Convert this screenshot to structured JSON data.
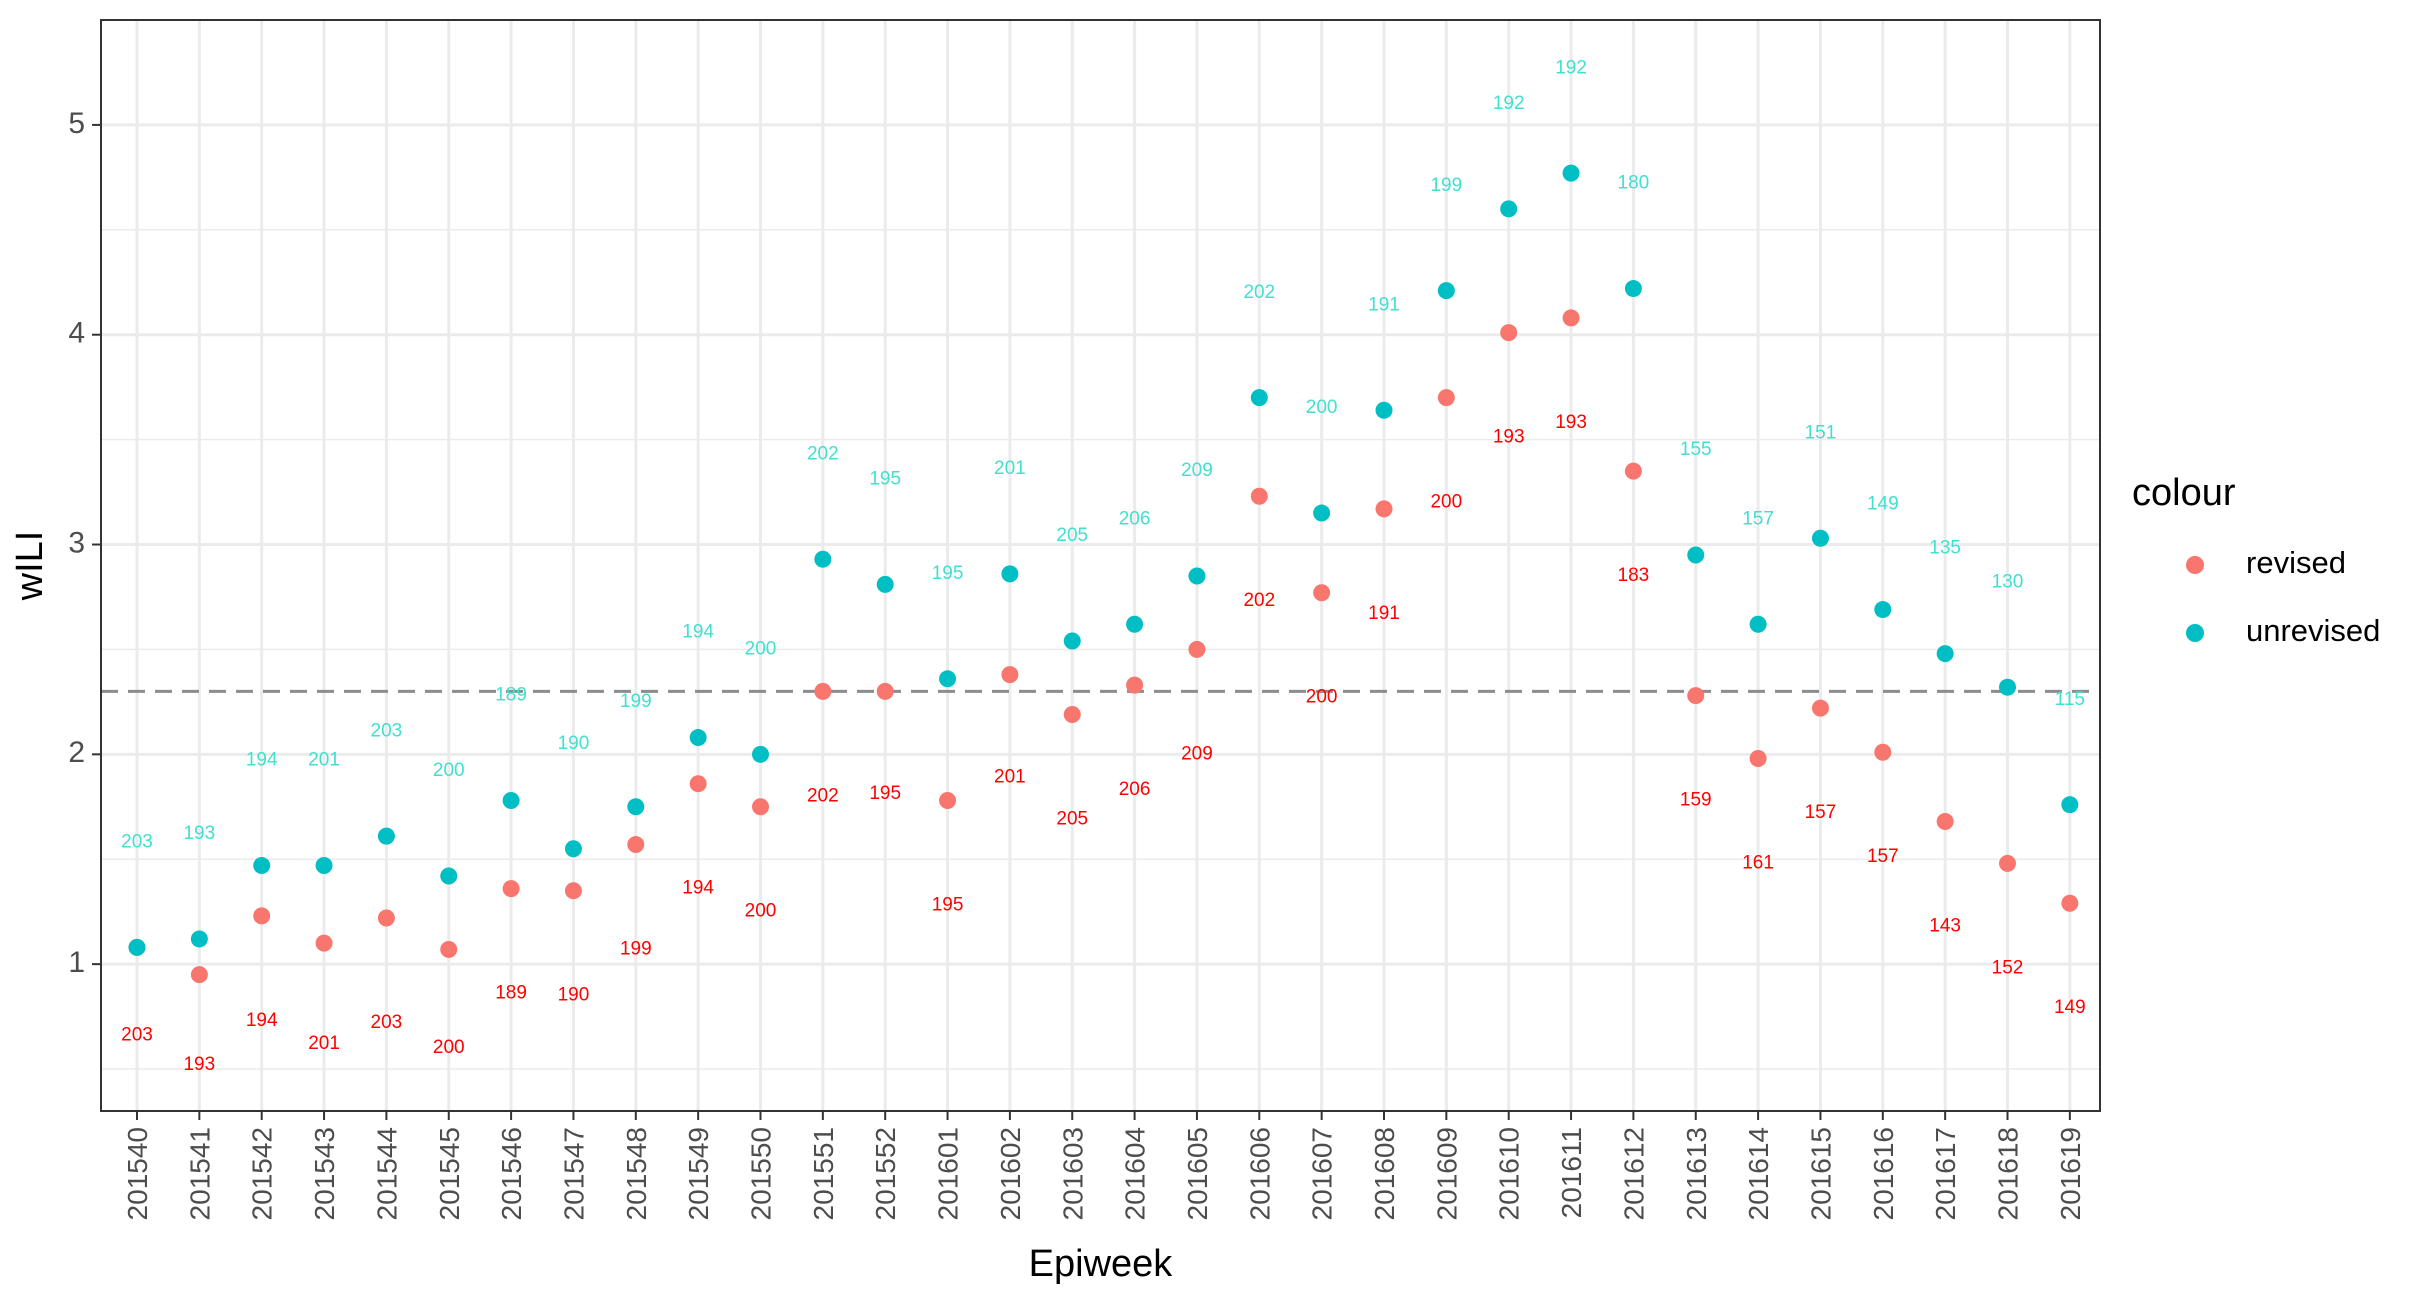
{
  "chart_data": {
    "type": "scatter",
    "xlabel": "Epiweek",
    "ylabel": "wILI",
    "title": "",
    "categories": [
      "201540",
      "201541",
      "201542",
      "201543",
      "201544",
      "201545",
      "201546",
      "201547",
      "201548",
      "201549",
      "201550",
      "201551",
      "201552",
      "201601",
      "201602",
      "201603",
      "201604",
      "201605",
      "201606",
      "201607",
      "201608",
      "201609",
      "201610",
      "201611",
      "201612",
      "201613",
      "201614",
      "201615",
      "201616",
      "201617",
      "201618",
      "201619"
    ],
    "ylim": [
      0.3,
      5.5
    ],
    "yticks": [
      1,
      2,
      3,
      4,
      5
    ],
    "grid": true,
    "reference_line": {
      "y": 2.3,
      "style": "dashed",
      "color": "#999999"
    },
    "legend": {
      "title": "colour",
      "position": "right"
    },
    "series": [
      {
        "name": "revised",
        "color": "#F8766D",
        "label_color": "#FF0000",
        "values": [
          1.08,
          0.95,
          1.23,
          1.1,
          1.22,
          1.07,
          1.36,
          1.35,
          1.57,
          1.86,
          1.75,
          2.3,
          2.3,
          1.78,
          2.38,
          2.19,
          2.33,
          2.5,
          3.23,
          2.77,
          3.17,
          3.7,
          4.01,
          4.08,
          3.35,
          2.28,
          1.98,
          2.22,
          2.01,
          1.68,
          1.48,
          1.29
        ],
        "labels": [
          "203",
          "193",
          "194",
          "201",
          "203",
          "200",
          "189",
          "190",
          "199",
          "194",
          "200",
          "202",
          "195",
          "195",
          "201",
          "205",
          "206",
          "209",
          "202",
          "200",
          "191",
          "200",
          "193",
          "193",
          "183",
          "159",
          "161",
          "157",
          "157",
          "143",
          "152",
          "149"
        ],
        "label_y": [
          0.66,
          0.52,
          0.73,
          0.62,
          0.72,
          0.6,
          0.86,
          0.85,
          1.07,
          1.36,
          1.25,
          1.8,
          1.81,
          1.28,
          1.89,
          1.69,
          1.83,
          2.0,
          2.73,
          2.27,
          2.67,
          3.2,
          3.51,
          3.58,
          2.85,
          1.78,
          1.48,
          1.72,
          1.51,
          1.18,
          0.98,
          0.79
        ]
      },
      {
        "name": "unrevised",
        "color": "#00BFC4",
        "label_color": "#40E0D0",
        "values": [
          1.08,
          1.12,
          1.47,
          1.47,
          1.61,
          1.42,
          1.78,
          1.55,
          1.75,
          2.08,
          2.0,
          2.93,
          2.81,
          2.36,
          2.86,
          2.54,
          2.62,
          2.85,
          3.7,
          3.15,
          3.64,
          4.21,
          4.6,
          4.77,
          4.22,
          2.95,
          2.62,
          3.03,
          2.69,
          2.48,
          2.32,
          1.76
        ],
        "labels": [
          "203",
          "193",
          "194",
          "201",
          "203",
          "200",
          "189",
          "190",
          "199",
          "194",
          "200",
          "202",
          "195",
          "195",
          "201",
          "205",
          "206",
          "209",
          "202",
          "200",
          "191",
          "199",
          "192",
          "192",
          "180",
          "155",
          "157",
          "151",
          "149",
          "135",
          "130",
          "115"
        ],
        "label_y": [
          1.58,
          1.62,
          1.97,
          1.97,
          2.11,
          1.92,
          2.28,
          2.05,
          2.25,
          2.58,
          2.5,
          3.43,
          3.31,
          2.86,
          3.36,
          3.04,
          3.12,
          3.35,
          4.2,
          3.65,
          4.14,
          4.71,
          5.1,
          5.27,
          4.72,
          3.45,
          3.12,
          3.53,
          3.19,
          2.98,
          2.82,
          2.26
        ]
      }
    ]
  }
}
